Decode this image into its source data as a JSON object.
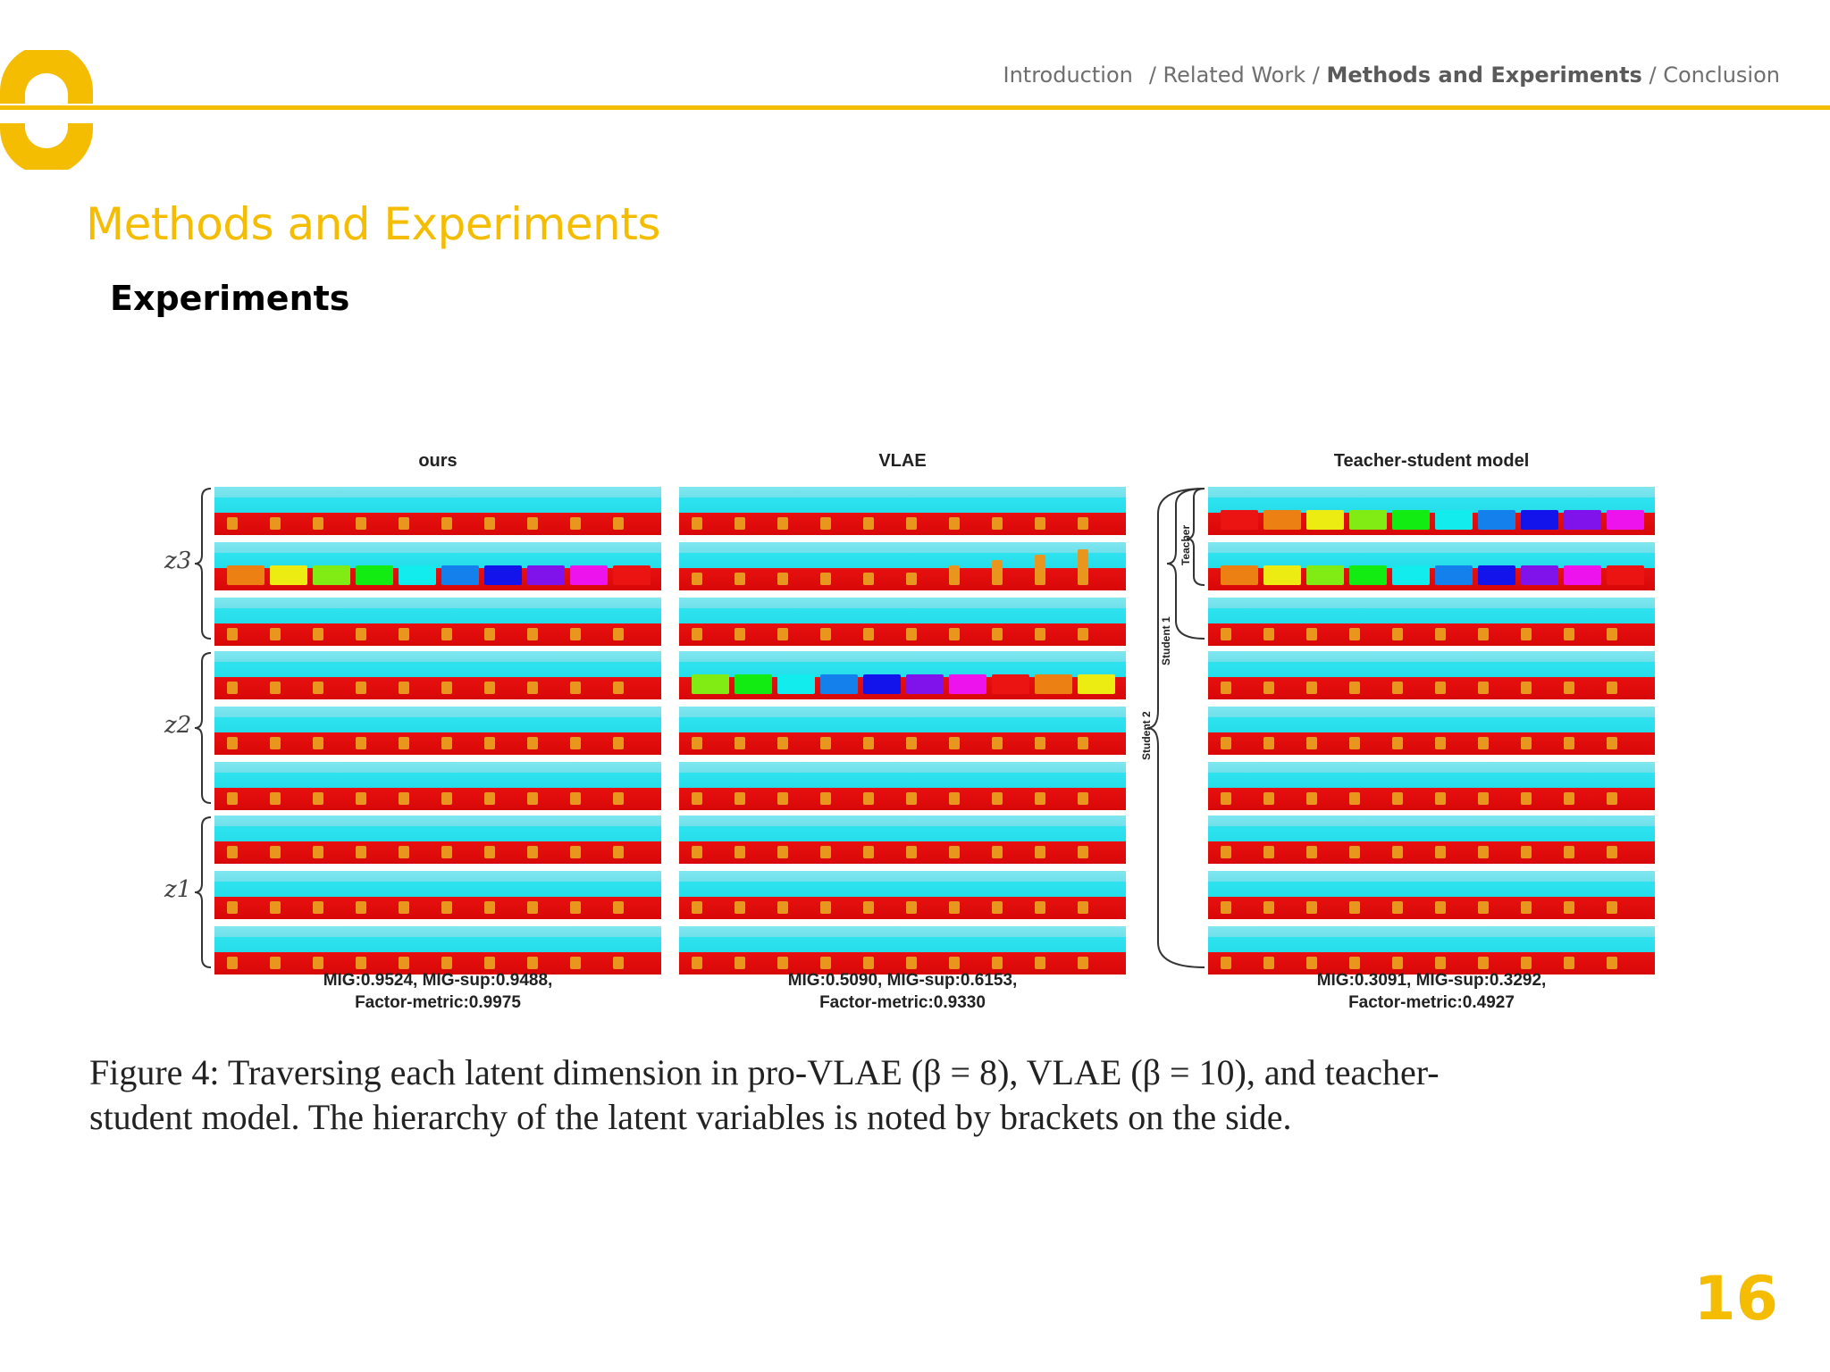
{
  "header": {
    "breadcrumb": {
      "item1": "Introduction",
      "item2": "/ Related Work /",
      "current": "Methods and Experiments",
      "item4": "/ Conclusion"
    }
  },
  "slide": {
    "title": "Methods and Experiments",
    "subtitle": "Experiments",
    "page_number": "16"
  },
  "figure": {
    "panels": [
      {
        "title": "ours",
        "metrics_line1": "MIG:0.9524, MIG-sup:0.9488,",
        "metrics_line2": "Factor-metric:0.9975"
      },
      {
        "title": "VLAE",
        "metrics_line1": "MIG:0.5090, MIG-sup:0.6153,",
        "metrics_line2": "Factor-metric:0.9330"
      },
      {
        "title": "Teacher-student model",
        "metrics_line1": "MIG:0.3091, MIG-sup:0.3292,",
        "metrics_line2": "Factor-metric:0.4927"
      }
    ],
    "z_labels": {
      "z3": "z3",
      "z2": "z2",
      "z1": "z1"
    },
    "brace_labels": {
      "teacher": "Teacher",
      "student1": "Student 1",
      "student2": "Student 2"
    },
    "caption_line1": "Figure 4:  Traversing each latent dimension in pro-VLAE (β = 8), VLAE (β = 10), and teacher-",
    "caption_line2": "student model. The hierarchy of the latent variables is noted by brackets on the side."
  },
  "colors": {
    "accent": "#f5bd02",
    "sky": "#2ee3ef",
    "floor": "#e81010",
    "object": "#e8961e"
  }
}
